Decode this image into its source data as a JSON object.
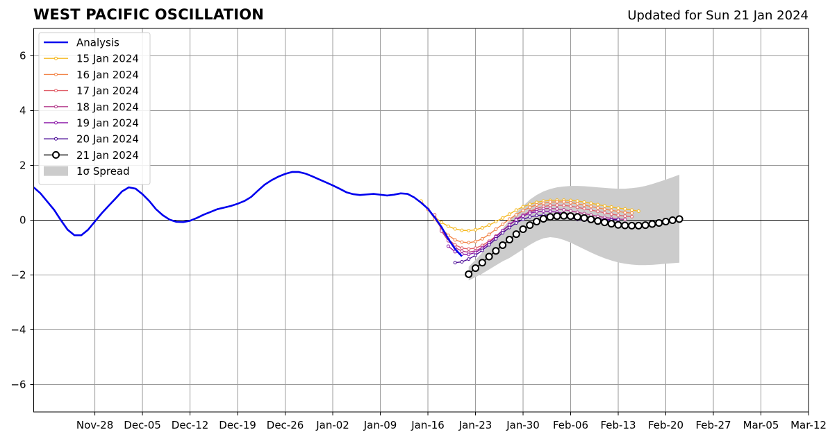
{
  "header": {
    "title": "WEST PACIFIC OSCILLATION",
    "updated": "Updated for Sun 21 Jan 2024"
  },
  "chart_data": {
    "type": "line",
    "title": "WEST PACIFIC OSCILLATION",
    "ylim": [
      -7,
      7
    ],
    "yticks": [
      -6,
      -4,
      -2,
      0,
      2,
      4,
      6
    ],
    "ytick_labels": [
      "−6",
      "−4",
      "−2",
      "0",
      "2",
      "4",
      "6"
    ],
    "xlim": [
      "2023-11-19",
      "2024-03-12"
    ],
    "xticks": [
      "2023-11-28",
      "2023-12-05",
      "2023-12-12",
      "2023-12-19",
      "2023-12-26",
      "2024-01-02",
      "2024-01-09",
      "2024-01-16",
      "2024-01-23",
      "2024-01-30",
      "2024-02-06",
      "2024-02-13",
      "2024-02-20",
      "2024-02-27",
      "2024-03-05",
      "2024-03-12"
    ],
    "xtick_labels": [
      "Nov-28",
      "Dec-05",
      "Dec-12",
      "Dec-19",
      "Dec-26",
      "Jan-02",
      "Jan-09",
      "Jan-16",
      "Jan-23",
      "Jan-30",
      "Feb-06",
      "Feb-13",
      "Feb-20",
      "Feb-27",
      "Mar-05",
      "Mar-12"
    ],
    "grid": true,
    "legend_position": "top-left",
    "colors": {
      "analysis": "#0000ee",
      "spread": "#cccccc",
      "zero_line": "#000000",
      "grid": "#999999"
    },
    "analysis": {
      "name": "Analysis",
      "start": "2023-11-19",
      "values": [
        1.2,
        0.98,
        0.68,
        0.38,
        0.0,
        -0.35,
        -0.55,
        -0.55,
        -0.35,
        -0.05,
        0.25,
        0.52,
        0.78,
        1.05,
        1.2,
        1.15,
        0.95,
        0.7,
        0.4,
        0.18,
        0.02,
        -0.06,
        -0.07,
        -0.02,
        0.08,
        0.2,
        0.3,
        0.4,
        0.46,
        0.52,
        0.6,
        0.7,
        0.85,
        1.08,
        1.3,
        1.46,
        1.59,
        1.69,
        1.76,
        1.76,
        1.7,
        1.6,
        1.49,
        1.38,
        1.27,
        1.15,
        1.02,
        0.95,
        0.92,
        0.94,
        0.96,
        0.93,
        0.9,
        0.93,
        0.98,
        0.96,
        0.83,
        0.64,
        0.42,
        0.1,
        -0.25,
        -0.68,
        -1.05,
        -1.32
      ]
    },
    "forecasts": [
      {
        "name": "15 Jan 2024",
        "color": "#f5b820",
        "start": "2024-01-15",
        "values": [
          0.7,
          0.4,
          0.12,
          -0.08,
          -0.22,
          -0.32,
          -0.37,
          -0.38,
          -0.35,
          -0.28,
          -0.18,
          -0.05,
          0.08,
          0.22,
          0.37,
          0.49,
          0.58,
          0.65,
          0.7,
          0.72,
          0.73,
          0.73,
          0.72,
          0.7,
          0.66,
          0.62,
          0.57,
          0.52,
          0.48,
          0.44,
          0.41,
          0.37,
          0.33
        ]
      },
      {
        "name": "16 Jan 2024",
        "color": "#f2854a",
        "start": "2024-01-16",
        "values": [
          0.4,
          0.05,
          -0.3,
          -0.55,
          -0.72,
          -0.8,
          -0.82,
          -0.78,
          -0.68,
          -0.52,
          -0.33,
          -0.15,
          0.04,
          0.2,
          0.35,
          0.47,
          0.56,
          0.62,
          0.66,
          0.67,
          0.67,
          0.64,
          0.6,
          0.55,
          0.5,
          0.45,
          0.4,
          0.36,
          0.32,
          0.28,
          0.26
        ]
      },
      {
        "name": "17 Jan 2024",
        "color": "#e0606a",
        "start": "2024-01-17",
        "values": [
          0.2,
          -0.35,
          -0.7,
          -0.9,
          -1.02,
          -1.05,
          -1.02,
          -0.92,
          -0.77,
          -0.58,
          -0.38,
          -0.18,
          0.02,
          0.18,
          0.32,
          0.43,
          0.5,
          0.54,
          0.55,
          0.54,
          0.51,
          0.47,
          0.42,
          0.37,
          0.32,
          0.27,
          0.22,
          0.18,
          0.15,
          0.13
        ]
      },
      {
        "name": "18 Jan 2024",
        "color": "#b43c8c",
        "start": "2024-01-18",
        "values": [
          -0.4,
          -0.75,
          -1.0,
          -1.13,
          -1.17,
          -1.12,
          -1.0,
          -0.82,
          -0.6,
          -0.38,
          -0.16,
          0.04,
          0.19,
          0.3,
          0.38,
          0.42,
          0.43,
          0.41,
          0.38,
          0.34,
          0.29,
          0.24,
          0.19,
          0.14,
          0.1,
          0.07,
          0.04,
          0.03
        ]
      },
      {
        "name": "19 Jan 2024",
        "color": "#8c18a8",
        "start": "2024-01-19",
        "values": [
          -0.95,
          -1.15,
          -1.24,
          -1.25,
          -1.18,
          -1.03,
          -0.83,
          -0.6,
          -0.38,
          -0.17,
          0.01,
          0.15,
          0.25,
          0.31,
          0.33,
          0.32,
          0.29,
          0.25,
          0.21,
          0.16,
          0.12,
          0.08,
          0.05,
          0.03,
          0.02,
          0.02
        ]
      },
      {
        "name": "20 Jan 2024",
        "color": "#4a0a96",
        "start": "2024-01-20",
        "values": [
          -1.55,
          -1.52,
          -1.42,
          -1.28,
          -1.1,
          -0.9,
          -0.68,
          -0.46,
          -0.27,
          -0.1,
          0.03,
          0.12,
          0.17,
          0.19,
          0.18,
          0.15,
          0.11,
          0.07,
          0.03,
          0.0,
          -0.02,
          -0.02,
          -0.01,
          0.01,
          0.03
        ]
      }
    ],
    "current": {
      "name": "21 Jan 2024",
      "color": "#000000",
      "start": "2024-01-22",
      "values": [
        -1.97,
        -1.75,
        -1.55,
        -1.33,
        -1.12,
        -0.91,
        -0.71,
        -0.51,
        -0.33,
        -0.18,
        -0.05,
        0.05,
        0.12,
        0.15,
        0.16,
        0.15,
        0.12,
        0.08,
        0.03,
        -0.03,
        -0.08,
        -0.13,
        -0.17,
        -0.19,
        -0.2,
        -0.2,
        -0.18,
        -0.14,
        -0.1,
        -0.05,
        0.0,
        0.04
      ]
    },
    "spread": {
      "name": "1σ Spread",
      "start": "2024-01-22",
      "upper": [
        -1.7,
        -1.45,
        -1.18,
        -0.9,
        -0.6,
        -0.3,
        0.0,
        0.28,
        0.52,
        0.75,
        0.92,
        1.05,
        1.14,
        1.2,
        1.23,
        1.25,
        1.25,
        1.24,
        1.22,
        1.2,
        1.18,
        1.16,
        1.15,
        1.15,
        1.17,
        1.2,
        1.25,
        1.32,
        1.4,
        1.48,
        1.57,
        1.66
      ],
      "lower": [
        -2.2,
        -2.08,
        -1.95,
        -1.8,
        -1.65,
        -1.5,
        -1.38,
        -1.22,
        -1.06,
        -0.9,
        -0.76,
        -0.66,
        -0.62,
        -0.65,
        -0.72,
        -0.82,
        -0.94,
        -1.06,
        -1.18,
        -1.29,
        -1.39,
        -1.47,
        -1.54,
        -1.59,
        -1.62,
        -1.64,
        -1.64,
        -1.63,
        -1.61,
        -1.59,
        -1.57,
        -1.55
      ]
    }
  }
}
